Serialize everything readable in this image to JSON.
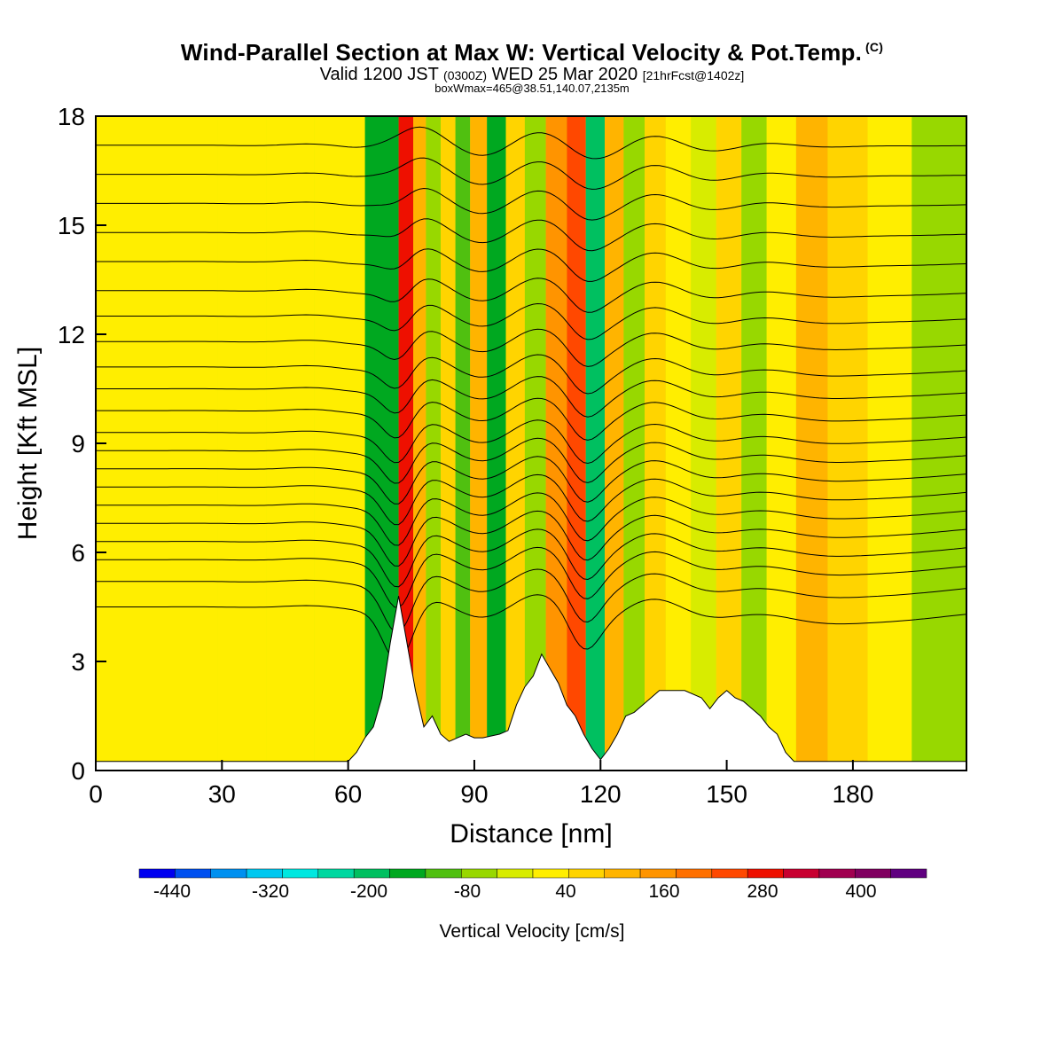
{
  "header": {
    "title": "Wind-Parallel Section at Max W: Vertical Velocity & Pot.Temp.",
    "copyright": "(C)",
    "valid_prefix": "Valid 1200 JST",
    "valid_zulu": "(0300Z)",
    "valid_date": "WED 25 Mar 2020",
    "forecast": "[21hrFcst@1402z]",
    "box_info": "boxWmax=465@38.51,140.07,2135m"
  },
  "chart_data": {
    "type": "heatmap",
    "xlabel": "Distance [nm]",
    "ylabel": "Height [Kft MSL]",
    "xlim": [
      0,
      207
    ],
    "ylim": [
      0,
      18
    ],
    "x_ticks": [
      0,
      30,
      60,
      90,
      120,
      150,
      180
    ],
    "y_ticks": [
      0,
      3,
      6,
      9,
      12,
      15,
      18
    ],
    "colorbar": {
      "title": "Vertical Velocity [cm/s]",
      "labels": [
        "-440",
        "-320",
        "-200",
        "-80",
        "40",
        "160",
        "280",
        "400"
      ],
      "colors": [
        "#0000f0",
        "#0050f0",
        "#0090f0",
        "#00c8f0",
        "#00e8e0",
        "#00d8a0",
        "#00c060",
        "#00a820",
        "#50c010",
        "#98d800",
        "#d8ec00",
        "#ffee00",
        "#ffd400",
        "#ffb400",
        "#ff9400",
        "#ff7000",
        "#ff4800",
        "#ee1000",
        "#c80030",
        "#a00050",
        "#800060",
        "#600080"
      ]
    },
    "terrain": [
      [
        0,
        0.25
      ],
      [
        10,
        0.25
      ],
      [
        20,
        0.25
      ],
      [
        40,
        0.25
      ],
      [
        55,
        0.25
      ],
      [
        60,
        0.25
      ],
      [
        62,
        0.5
      ],
      [
        64,
        0.9
      ],
      [
        66,
        1.2
      ],
      [
        68,
        2
      ],
      [
        70,
        3.5
      ],
      [
        72,
        4.8
      ],
      [
        74,
        3.5
      ],
      [
        76,
        2.2
      ],
      [
        78,
        1.2
      ],
      [
        80,
        1.5
      ],
      [
        82,
        1.0
      ],
      [
        84,
        0.8
      ],
      [
        86,
        0.9
      ],
      [
        88,
        1.0
      ],
      [
        90,
        0.9
      ],
      [
        92,
        0.9
      ],
      [
        96,
        1.0
      ],
      [
        98,
        1.1
      ],
      [
        100,
        1.8
      ],
      [
        102,
        2.3
      ],
      [
        104,
        2.6
      ],
      [
        106,
        3.2
      ],
      [
        108,
        2.8
      ],
      [
        110,
        2.4
      ],
      [
        112,
        1.8
      ],
      [
        114,
        1.5
      ],
      [
        116,
        1.0
      ],
      [
        118,
        0.6
      ],
      [
        120,
        0.3
      ],
      [
        122,
        0.6
      ],
      [
        124,
        1.0
      ],
      [
        126,
        1.5
      ],
      [
        128,
        1.6
      ],
      [
        130,
        1.8
      ],
      [
        132,
        2.0
      ],
      [
        134,
        2.2
      ],
      [
        140,
        2.2
      ],
      [
        144,
        2.0
      ],
      [
        146,
        1.7
      ],
      [
        148,
        2.0
      ],
      [
        150,
        2.2
      ],
      [
        152,
        2.0
      ],
      [
        154,
        1.9
      ],
      [
        156,
        1.7
      ],
      [
        158,
        1.5
      ],
      [
        160,
        1.2
      ],
      [
        162,
        1.0
      ],
      [
        164,
        0.5
      ],
      [
        166,
        0.25
      ],
      [
        207,
        0.25
      ]
    ],
    "vv_columns": [
      {
        "x": 23,
        "value": 40
      },
      {
        "x": 35,
        "value": 20
      },
      {
        "x": 46,
        "value": 35
      },
      {
        "x": 58,
        "value": 40
      },
      {
        "x": 70,
        "value": -150
      },
      {
        "x": 74,
        "value": 300
      },
      {
        "x": 77,
        "value": 120
      },
      {
        "x": 80,
        "value": -60
      },
      {
        "x": 84,
        "value": 60
      },
      {
        "x": 87,
        "value": -120
      },
      {
        "x": 91,
        "value": 100
      },
      {
        "x": 95,
        "value": -140
      },
      {
        "x": 100,
        "value": 80
      },
      {
        "x": 104,
        "value": -60
      },
      {
        "x": 110,
        "value": 160
      },
      {
        "x": 114,
        "value": 260
      },
      {
        "x": 119,
        "value": -200
      },
      {
        "x": 123,
        "value": 100
      },
      {
        "x": 128,
        "value": -60
      },
      {
        "x": 133,
        "value": 80
      },
      {
        "x": 138,
        "value": 40
      },
      {
        "x": 145,
        "value": -40
      },
      {
        "x": 150,
        "value": 60
      },
      {
        "x": 157,
        "value": -80
      },
      {
        "x": 162,
        "value": 40
      },
      {
        "x": 171,
        "value": 100
      },
      {
        "x": 177,
        "value": 60
      },
      {
        "x": 190,
        "value": 30
      },
      {
        "x": 198,
        "value": -60
      }
    ],
    "isentropes_start_heights": [
      4.5,
      5.2,
      5.8,
      6.3,
      6.8,
      7.3,
      7.8,
      8.3,
      8.8,
      9.3,
      9.9,
      10.5,
      11.1,
      11.8,
      12.5,
      13.2,
      14.0,
      14.8,
      15.6,
      16.4,
      17.2
    ]
  }
}
